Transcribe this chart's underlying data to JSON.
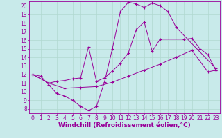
{
  "background_color": "#c8eaea",
  "grid_color": "#b0d8d0",
  "line_color": "#990099",
  "xlim": [
    -0.5,
    23.5
  ],
  "ylim": [
    7.5,
    20.5
  ],
  "xlabel": "Windchill (Refroidissement éolien,°C)",
  "xticks": [
    0,
    1,
    2,
    3,
    4,
    5,
    6,
    7,
    8,
    9,
    10,
    11,
    12,
    13,
    14,
    15,
    16,
    17,
    18,
    19,
    20,
    21,
    22,
    23
  ],
  "yticks": [
    8,
    9,
    10,
    11,
    12,
    13,
    14,
    15,
    16,
    17,
    18,
    19,
    20
  ],
  "tick_fontsize": 5.5,
  "xlabel_fontsize": 6.5,
  "line1": {
    "x": [
      0,
      1,
      2,
      3,
      4,
      5,
      6,
      7,
      8,
      9,
      10,
      11,
      12,
      13,
      14,
      15,
      16,
      17,
      18,
      23
    ],
    "y": [
      12.0,
      11.8,
      10.8,
      9.8,
      9.5,
      9.0,
      8.3,
      7.8,
      8.3,
      11.1,
      15.0,
      19.3,
      20.4,
      20.2,
      19.8,
      20.3,
      20.0,
      19.3,
      17.5,
      12.7
    ]
  },
  "line2": {
    "x": [
      0,
      2,
      3,
      4,
      5,
      6,
      7,
      8,
      9,
      10,
      11,
      12,
      13,
      14,
      15,
      16,
      19,
      20,
      21,
      22,
      23
    ],
    "y": [
      12.0,
      11.0,
      11.2,
      11.3,
      11.5,
      11.6,
      15.2,
      11.2,
      11.6,
      12.4,
      13.3,
      14.5,
      17.2,
      18.1,
      14.7,
      16.1,
      16.1,
      16.2,
      15.0,
      14.3,
      12.5
    ]
  },
  "line3": {
    "x": [
      0,
      2,
      4,
      6,
      8,
      10,
      12,
      14,
      16,
      18,
      20,
      22,
      23
    ],
    "y": [
      12.0,
      11.0,
      10.4,
      10.5,
      10.6,
      11.1,
      11.8,
      12.5,
      13.2,
      14.0,
      14.8,
      12.3,
      12.5
    ]
  }
}
